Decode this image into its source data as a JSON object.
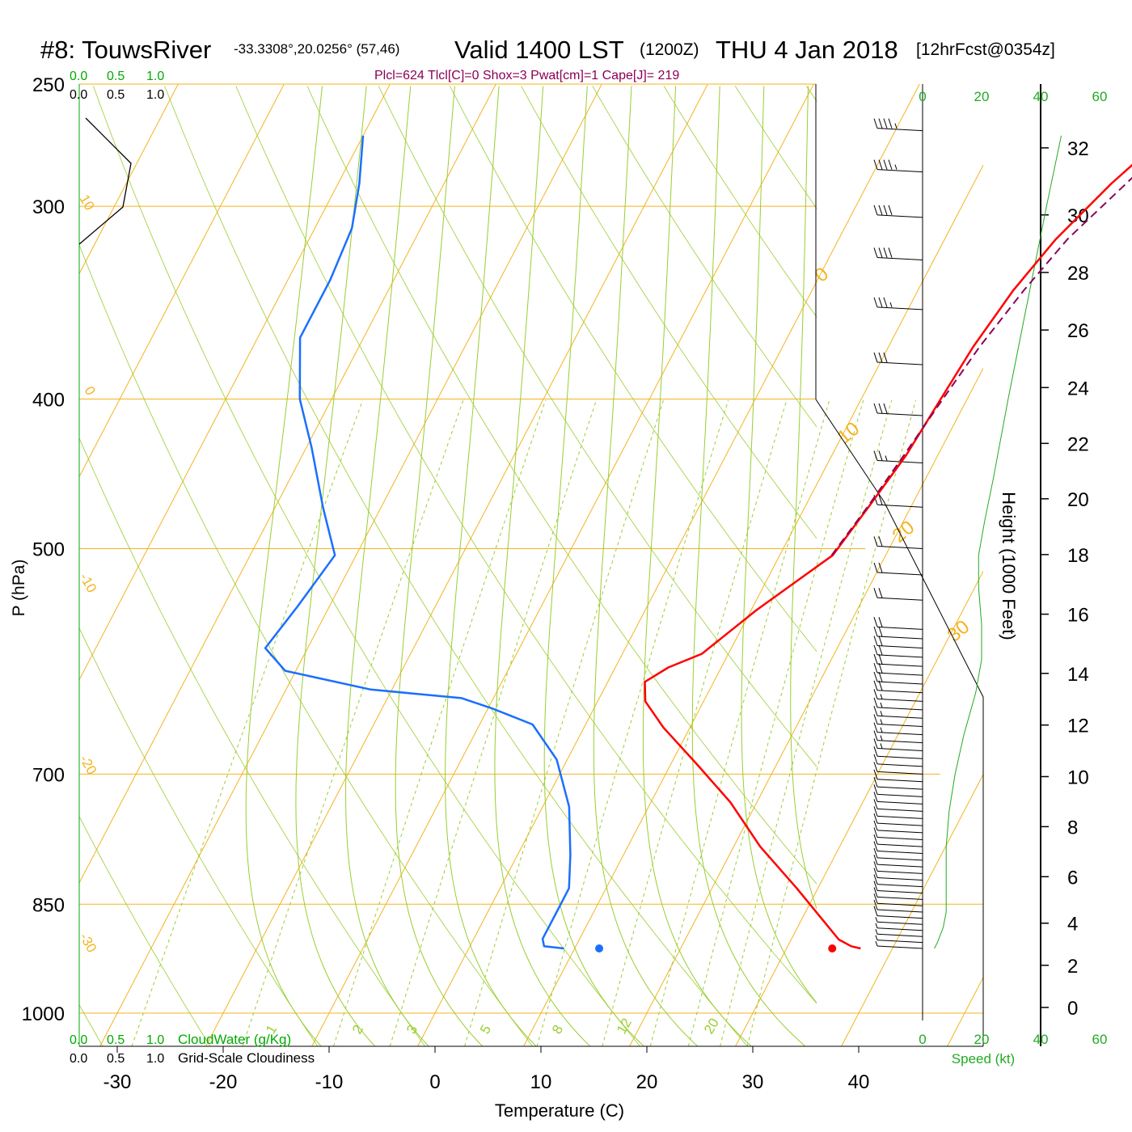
{
  "header": {
    "station": "#8: TouwsRiver",
    "coords": "-33.3308°,20.0256° (57,46)",
    "valid": "Valid 1400 LST",
    "zulu": "(1200Z)",
    "date": "THU 4 Jan 2018",
    "forecast": "[12hrFcst@0354z]",
    "indices": "Plcl=624 Tlcl[C]=0 Shox=3 Pwat[cm]=1 Cape[J]= 219"
  },
  "labels": {
    "x_axis": "Temperature (C)",
    "y_axis": "P (hPa)",
    "height_axis": "Height (1000 Feet)",
    "speed_axis": "Speed (kt)",
    "cloudwater": "CloudWater (g/Kg)",
    "cloudiness": "Grid-Scale Cloudiness"
  },
  "scales": {
    "cloud_top": [
      "0.0",
      "0.5",
      "1.0"
    ],
    "cloud_bottom": [
      "0.0",
      "0.5",
      "1.0"
    ]
  },
  "colors": {
    "temperature": "#ff0000",
    "dewpoint": "#1a6fff",
    "parcel": "#8b0057",
    "isotherm": "#f5b31f",
    "adiabat": "#9acd32",
    "mixing_ratio": "#9acd32",
    "wind_speed": "#22aa22",
    "cloud_scale": "#00aa00"
  },
  "chart_data": {
    "type": "line",
    "title": "#8: TouwsRiver Valid 1400 LST THU 4 Jan 2018",
    "xlabel": "Temperature (C)",
    "ylabel": "P (hPa)",
    "x_ticks": [
      -30,
      -20,
      -10,
      0,
      10,
      20,
      30,
      40
    ],
    "p_ticks": [
      250,
      300,
      400,
      500,
      700,
      850,
      1000
    ],
    "height_ticks": [
      0,
      2,
      4,
      6,
      8,
      10,
      12,
      14,
      16,
      18,
      20,
      22,
      24,
      26,
      28,
      30,
      32
    ],
    "speed_ticks": [
      0,
      20,
      40,
      60
    ],
    "isotherm_labels": [
      "-30",
      "-20",
      "-10",
      "0",
      "10",
      "0",
      "10",
      "20",
      "30"
    ],
    "mixing_ratio_labels": [
      "1",
      "2",
      "3",
      "5",
      "8",
      "12",
      "20"
    ],
    "series": [
      {
        "name": "Temperature",
        "points": [
          [
            37.0,
            908
          ],
          [
            36.0,
            905
          ],
          [
            34.5,
            896
          ],
          [
            28.0,
            830
          ],
          [
            22.5,
            780
          ],
          [
            17.5,
            730
          ],
          [
            12.5,
            690
          ],
          [
            7.5,
            653
          ],
          [
            4.5,
            628
          ],
          [
            3.5,
            610
          ],
          [
            5.0,
            597
          ],
          [
            7.5,
            585
          ],
          [
            10.5,
            548
          ],
          [
            15.0,
            505
          ],
          [
            16.0,
            470
          ],
          [
            17.0,
            435
          ],
          [
            17.5,
            400
          ],
          [
            18.0,
            370
          ],
          [
            19.0,
            340
          ],
          [
            20.5,
            315
          ],
          [
            23.0,
            290
          ],
          [
            26.0,
            268
          ]
        ]
      },
      {
        "name": "Dewpoint",
        "points": [
          [
            9.0,
            908
          ],
          [
            7.0,
            905
          ],
          [
            6.5,
            895
          ],
          [
            6.5,
            860
          ],
          [
            6.5,
            830
          ],
          [
            5.0,
            790
          ],
          [
            2.5,
            735
          ],
          [
            -1.0,
            685
          ],
          [
            -5.0,
            650
          ],
          [
            -9.5,
            635
          ],
          [
            -13.0,
            625
          ],
          [
            -22.0,
            617
          ],
          [
            -31.0,
            600
          ],
          [
            -34.0,
            580
          ],
          [
            -33.0,
            545
          ],
          [
            -32.0,
            505
          ],
          [
            -35.5,
            470
          ],
          [
            -39.5,
            430
          ],
          [
            -43.0,
            400
          ],
          [
            -46.0,
            365
          ],
          [
            -46.0,
            335
          ],
          [
            -46.5,
            310
          ],
          [
            -48.0,
            290
          ],
          [
            -50.0,
            270
          ]
        ]
      },
      {
        "name": "Parcel",
        "points": [
          [
            14.9,
            505
          ],
          [
            15.9,
            470
          ],
          [
            16.8,
            435
          ],
          [
            17.7,
            400
          ],
          [
            18.6,
            370
          ],
          [
            20.0,
            340
          ],
          [
            21.6,
            315
          ],
          [
            24.4,
            290
          ],
          [
            27.0,
            268
          ]
        ]
      }
    ],
    "surface": {
      "temperature": 37.5,
      "dewpoint": 15.5,
      "pressure": 908
    },
    "height_profile_1000ft": [
      [
        908,
        2.8
      ],
      [
        850,
        4.9
      ],
      [
        700,
        10.1
      ],
      [
        600,
        14.1
      ],
      [
        500,
        18.2
      ],
      [
        400,
        23.6
      ],
      [
        300,
        30.3
      ],
      [
        268,
        32.5
      ]
    ],
    "wind_speed_kt": [
      [
        908,
        4
      ],
      [
        900,
        5
      ],
      [
        880,
        7
      ],
      [
        860,
        8
      ],
      [
        820,
        8
      ],
      [
        780,
        8
      ],
      [
        740,
        9
      ],
      [
        700,
        11
      ],
      [
        660,
        14
      ],
      [
        620,
        18
      ],
      [
        590,
        20
      ],
      [
        560,
        20
      ],
      [
        530,
        19
      ],
      [
        505,
        19
      ],
      [
        480,
        21
      ],
      [
        450,
        24
      ],
      [
        400,
        29
      ],
      [
        350,
        35
      ],
      [
        300,
        42
      ],
      [
        270,
        47
      ]
    ],
    "wind_direction": "west",
    "ylim": [
      1000,
      250
    ],
    "xlim": [
      -40,
      50
    ],
    "ylog": true,
    "grid": true
  }
}
